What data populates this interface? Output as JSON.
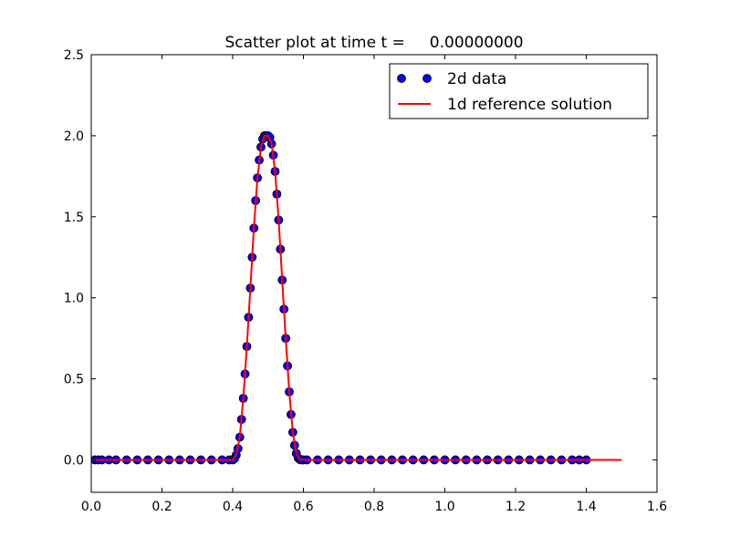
{
  "chart_data": {
    "type": "scatter",
    "title": "Scatter plot at time t =     0.00000000",
    "xlabel": "",
    "ylabel": "",
    "xlim": [
      0.0,
      1.6
    ],
    "ylim": [
      -0.2,
      2.5
    ],
    "xticks": [
      0.0,
      0.2,
      0.4,
      0.6,
      0.8,
      1.0,
      1.2,
      1.4,
      1.6
    ],
    "xtick_labels": [
      "0.0",
      "0.2",
      "0.4",
      "0.6",
      "0.8",
      "1.0",
      "1.2",
      "1.4",
      "1.6"
    ],
    "yticks": [
      0.0,
      0.5,
      1.0,
      1.5,
      2.0,
      2.5
    ],
    "ytick_labels": [
      "0.0",
      "0.5",
      "1.0",
      "1.5",
      "2.0",
      "2.5"
    ],
    "grid": false,
    "legend_position": "top-right",
    "series": [
      {
        "name": "2d data",
        "kind": "scatter",
        "color": "#0000ff",
        "x": [
          0.01,
          0.02,
          0.03,
          0.05,
          0.07,
          0.1,
          0.13,
          0.16,
          0.19,
          0.22,
          0.25,
          0.28,
          0.31,
          0.34,
          0.37,
          0.39,
          0.4,
          0.405,
          0.41,
          0.415,
          0.42,
          0.425,
          0.43,
          0.435,
          0.44,
          0.445,
          0.45,
          0.455,
          0.46,
          0.465,
          0.47,
          0.475,
          0.48,
          0.485,
          0.49,
          0.495,
          0.5,
          0.505,
          0.51,
          0.515,
          0.52,
          0.525,
          0.53,
          0.535,
          0.54,
          0.545,
          0.55,
          0.555,
          0.56,
          0.565,
          0.57,
          0.575,
          0.58,
          0.585,
          0.59,
          0.595,
          0.6,
          0.61,
          0.64,
          0.67,
          0.7,
          0.73,
          0.76,
          0.79,
          0.82,
          0.85,
          0.88,
          0.91,
          0.94,
          0.97,
          1.0,
          1.03,
          1.06,
          1.09,
          1.12,
          1.15,
          1.18,
          1.21,
          1.24,
          1.27,
          1.3,
          1.33,
          1.36,
          1.38,
          1.4
        ],
        "y": [
          0,
          0,
          0,
          0,
          0,
          0,
          0,
          0,
          0,
          0,
          0,
          0,
          0,
          0,
          0,
          0,
          0,
          0.008,
          0.03,
          0.07,
          0.14,
          0.25,
          0.38,
          0.53,
          0.7,
          0.88,
          1.06,
          1.25,
          1.43,
          1.6,
          1.74,
          1.85,
          1.93,
          1.98,
          2.0,
          2.0,
          2.0,
          1.99,
          1.95,
          1.88,
          1.78,
          1.64,
          1.48,
          1.3,
          1.11,
          0.93,
          0.75,
          0.58,
          0.42,
          0.28,
          0.17,
          0.09,
          0.04,
          0.012,
          0.002,
          0,
          0,
          0,
          0,
          0,
          0,
          0,
          0,
          0,
          0,
          0,
          0,
          0,
          0,
          0,
          0,
          0,
          0,
          0,
          0,
          0,
          0,
          0,
          0,
          0,
          0,
          0,
          0,
          0,
          0
        ]
      },
      {
        "name": "1d reference solution",
        "kind": "line",
        "color": "#ff0000",
        "x": [
          0.0,
          0.1,
          0.2,
          0.3,
          0.4,
          0.41,
          0.42,
          0.43,
          0.44,
          0.45,
          0.46,
          0.47,
          0.48,
          0.49,
          0.5,
          0.51,
          0.52,
          0.53,
          0.54,
          0.55,
          0.56,
          0.57,
          0.58,
          0.59,
          0.6,
          0.7,
          0.8,
          0.9,
          1.0,
          1.1,
          1.2,
          1.3,
          1.4,
          1.5
        ],
        "y": [
          0,
          0,
          0,
          0,
          0,
          0.03,
          0.14,
          0.38,
          0.7,
          1.06,
          1.43,
          1.74,
          1.93,
          2.0,
          2.0,
          1.95,
          1.78,
          1.48,
          1.11,
          0.75,
          0.42,
          0.17,
          0.04,
          0.002,
          0,
          0,
          0,
          0,
          0,
          0,
          0,
          0,
          0,
          0
        ]
      }
    ]
  }
}
